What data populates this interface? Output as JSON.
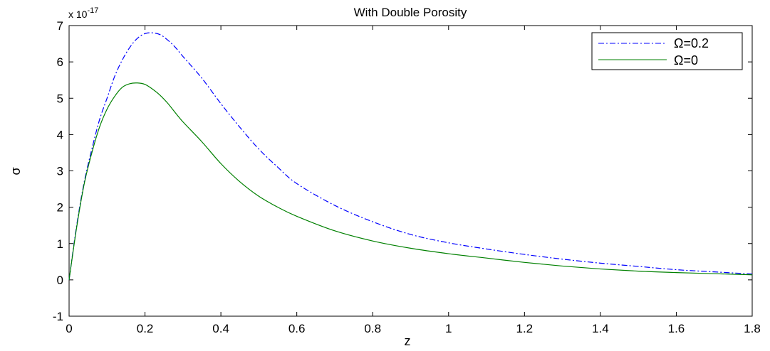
{
  "chart_data": {
    "type": "line",
    "title": "With Double Porosity",
    "xlabel": "z",
    "ylabel": "σ",
    "y_exponent_label": "x 10",
    "y_exponent_power": "-17",
    "xlim": [
      0,
      1.8
    ],
    "ylim": [
      -1,
      7
    ],
    "grid": false,
    "legend_position": "top-right",
    "x_ticks": [
      0,
      0.2,
      0.4,
      0.6,
      0.8,
      1,
      1.2,
      1.4,
      1.6,
      1.8
    ],
    "x_tick_labels": [
      "0",
      "0.2",
      "0.4",
      "0.6",
      "0.8",
      "1",
      "1.2",
      "1.4",
      "1.6",
      "1.8"
    ],
    "y_ticks": [
      -1,
      0,
      1,
      2,
      3,
      4,
      5,
      6,
      7
    ],
    "y_tick_labels": [
      "-1",
      "0",
      "1",
      "2",
      "3",
      "4",
      "5",
      "6",
      "7"
    ],
    "series": [
      {
        "name": "Ω=0.2",
        "color": "#0000ff",
        "line_style": "dash-dot",
        "x": [
          0,
          0.02,
          0.04,
          0.06,
          0.08,
          0.1,
          0.12,
          0.14,
          0.16,
          0.18,
          0.2,
          0.22,
          0.24,
          0.26,
          0.28,
          0.3,
          0.35,
          0.4,
          0.45,
          0.5,
          0.55,
          0.6,
          0.7,
          0.8,
          0.9,
          1.0,
          1.1,
          1.2,
          1.3,
          1.4,
          1.5,
          1.6,
          1.7,
          1.8
        ],
        "y": [
          0,
          1.5,
          2.7,
          3.6,
          4.4,
          5.0,
          5.6,
          6.05,
          6.4,
          6.65,
          6.78,
          6.8,
          6.75,
          6.6,
          6.4,
          6.15,
          5.55,
          4.85,
          4.2,
          3.6,
          3.1,
          2.65,
          2.05,
          1.6,
          1.25,
          1.02,
          0.85,
          0.7,
          0.57,
          0.46,
          0.37,
          0.28,
          0.22,
          0.16
        ]
      },
      {
        "name": "Ω=0",
        "color": "#008000",
        "line_style": "solid",
        "x": [
          0,
          0.02,
          0.04,
          0.06,
          0.08,
          0.1,
          0.12,
          0.14,
          0.16,
          0.18,
          0.2,
          0.22,
          0.24,
          0.26,
          0.28,
          0.3,
          0.35,
          0.4,
          0.45,
          0.5,
          0.55,
          0.6,
          0.7,
          0.8,
          0.9,
          1.0,
          1.1,
          1.2,
          1.3,
          1.4,
          1.5,
          1.6,
          1.7,
          1.8
        ],
        "y": [
          0,
          1.45,
          2.65,
          3.5,
          4.2,
          4.7,
          5.05,
          5.3,
          5.4,
          5.42,
          5.38,
          5.25,
          5.08,
          4.86,
          4.6,
          4.35,
          3.8,
          3.2,
          2.7,
          2.3,
          2.0,
          1.75,
          1.35,
          1.07,
          0.87,
          0.72,
          0.6,
          0.48,
          0.38,
          0.3,
          0.24,
          0.2,
          0.17,
          0.14
        ]
      }
    ]
  }
}
